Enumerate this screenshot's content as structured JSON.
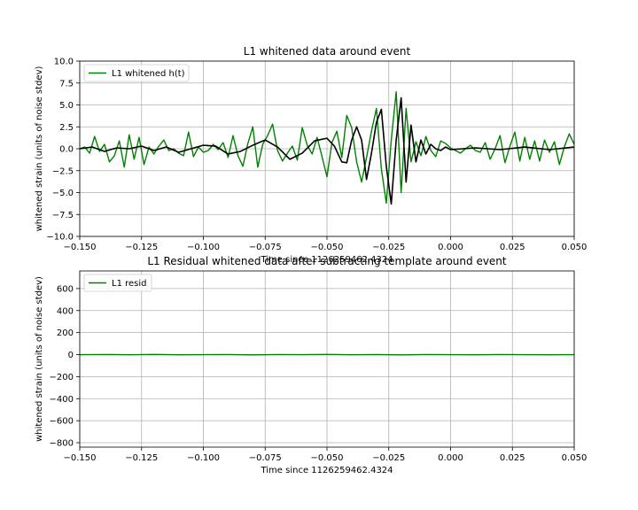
{
  "chart_data": [
    {
      "type": "line",
      "title": "L1 whitened data around event",
      "xlabel": "Time since 1126259462.4324",
      "ylabel": "whitened strain (units of noise stdev)",
      "xlim": [
        -0.15,
        0.05
      ],
      "ylim": [
        -10,
        10
      ],
      "xticks": [
        -0.15,
        -0.125,
        -0.1,
        -0.075,
        -0.05,
        -0.025,
        0.0,
        0.025,
        0.05
      ],
      "xtick_labels": [
        "−0.150",
        "−0.125",
        "−0.100",
        "−0.075",
        "−0.050",
        "−0.025",
        "0.000",
        "0.025",
        "0.050"
      ],
      "yticks": [
        -10,
        -7.5,
        -5,
        -2.5,
        0,
        2.5,
        5,
        7.5,
        10
      ],
      "ytick_labels": [
        "−10.0",
        "−7.5",
        "−5.0",
        "−2.5",
        "0.0",
        "2.5",
        "5.0",
        "7.5",
        "10.0"
      ],
      "grid": true,
      "legend_position": "top-left",
      "series": [
        {
          "name": "L1 whitened h(t)",
          "color": "#008000",
          "x": [
            -0.15,
            -0.148,
            -0.146,
            -0.144,
            -0.142,
            -0.14,
            -0.138,
            -0.136,
            -0.134,
            -0.132,
            -0.13,
            -0.128,
            -0.126,
            -0.124,
            -0.122,
            -0.12,
            -0.118,
            -0.116,
            -0.114,
            -0.112,
            -0.11,
            -0.108,
            -0.106,
            -0.104,
            -0.102,
            -0.1,
            -0.098,
            -0.096,
            -0.094,
            -0.092,
            -0.09,
            -0.088,
            -0.086,
            -0.084,
            -0.082,
            -0.08,
            -0.078,
            -0.076,
            -0.074,
            -0.072,
            -0.07,
            -0.068,
            -0.066,
            -0.064,
            -0.062,
            -0.06,
            -0.058,
            -0.056,
            -0.054,
            -0.052,
            -0.05,
            -0.048,
            -0.046,
            -0.044,
            -0.042,
            -0.04,
            -0.038,
            -0.036,
            -0.034,
            -0.032,
            -0.03,
            -0.028,
            -0.026,
            -0.024,
            -0.022,
            -0.02,
            -0.018,
            -0.016,
            -0.014,
            -0.012,
            -0.01,
            -0.008,
            -0.006,
            -0.004,
            -0.002,
            0.0,
            0.002,
            0.004,
            0.006,
            0.008,
            0.01,
            0.012,
            0.014,
            0.016,
            0.018,
            0.02,
            0.022,
            0.024,
            0.026,
            0.028,
            0.03,
            0.032,
            0.034,
            0.036,
            0.038,
            0.04,
            0.042,
            0.044,
            0.046,
            0.048,
            0.05
          ],
          "y": [
            0.0,
            0.2,
            -0.5,
            1.4,
            -0.3,
            0.5,
            -1.5,
            -0.8,
            0.9,
            -2.1,
            1.6,
            -1.2,
            1.3,
            -1.8,
            0.2,
            -0.6,
            0.3,
            1.0,
            -0.2,
            0.0,
            -0.5,
            -0.8,
            1.9,
            -0.9,
            0.2,
            -0.4,
            -0.2,
            0.5,
            -0.1,
            0.7,
            -1.0,
            1.5,
            -0.8,
            -2.0,
            0.6,
            2.5,
            -2.1,
            0.5,
            1.5,
            2.8,
            -0.2,
            -1.4,
            -0.5,
            0.3,
            -1.3,
            2.4,
            0.4,
            -0.6,
            1.3,
            -0.9,
            -3.2,
            0.7,
            2.0,
            -1.0,
            3.8,
            2.4,
            -1.5,
            -3.8,
            -1.0,
            2.0,
            4.6,
            -2.3,
            -6.2,
            1.0,
            6.5,
            -5.0,
            4.6,
            -1.5,
            0.8,
            -0.8,
            1.4,
            -0.2,
            -0.9,
            0.9,
            0.6,
            0.1,
            -0.2,
            -0.5,
            0.0,
            0.4,
            -0.2,
            -0.4,
            0.7,
            -1.2,
            0.0,
            1.5,
            -1.6,
            0.3,
            1.9,
            -1.4,
            1.3,
            -1.2,
            0.9,
            -1.4,
            1.0,
            -0.4,
            0.8,
            -1.8,
            0.2,
            1.7,
            0.5
          ]
        },
        {
          "name": "",
          "color": "#000000",
          "x": [
            -0.15,
            -0.145,
            -0.14,
            -0.135,
            -0.13,
            -0.125,
            -0.12,
            -0.115,
            -0.11,
            -0.105,
            -0.1,
            -0.095,
            -0.09,
            -0.085,
            -0.08,
            -0.075,
            -0.07,
            -0.065,
            -0.06,
            -0.055,
            -0.05,
            -0.047,
            -0.044,
            -0.042,
            -0.04,
            -0.038,
            -0.036,
            -0.034,
            -0.032,
            -0.03,
            -0.028,
            -0.026,
            -0.024,
            -0.022,
            -0.02,
            -0.018,
            -0.016,
            -0.014,
            -0.012,
            -0.01,
            -0.008,
            -0.006,
            -0.004,
            -0.002,
            0.0,
            0.01,
            0.02,
            0.03,
            0.04,
            0.05
          ],
          "y": [
            0.0,
            0.2,
            -0.3,
            0.1,
            0.0,
            0.3,
            -0.2,
            0.2,
            -0.4,
            0.0,
            0.4,
            0.3,
            -0.6,
            -0.3,
            0.4,
            1.0,
            0.2,
            -1.2,
            -0.5,
            0.9,
            1.2,
            0.3,
            -1.5,
            -1.6,
            1.0,
            2.5,
            1.0,
            -3.5,
            -0.5,
            3.0,
            4.5,
            -2.0,
            -6.3,
            1.0,
            5.8,
            -3.8,
            2.7,
            -1.5,
            1.0,
            -0.6,
            0.5,
            0.0,
            -0.2,
            0.2,
            -0.1,
            0.1,
            -0.1,
            0.2,
            -0.1,
            0.2
          ]
        }
      ]
    },
    {
      "type": "line",
      "title": "L1 Residual whitened data after subtracting template around event",
      "xlabel": "Time since 1126259462.4324",
      "ylabel": "whitened strain (units of noise stdev)",
      "xlim": [
        -0.15,
        0.05
      ],
      "ylim": [
        -840,
        760
      ],
      "xticks": [
        -0.15,
        -0.125,
        -0.1,
        -0.075,
        -0.05,
        -0.025,
        0.0,
        0.025,
        0.05
      ],
      "xtick_labels": [
        "−0.150",
        "−0.125",
        "−0.100",
        "−0.075",
        "−0.050",
        "−0.025",
        "0.000",
        "0.025",
        "0.050"
      ],
      "yticks": [
        -800,
        -600,
        -400,
        -200,
        0,
        200,
        400,
        600
      ],
      "ytick_labels": [
        "−800",
        "−600",
        "−400",
        "−200",
        "0",
        "200",
        "400",
        "600"
      ],
      "grid": true,
      "legend_position": "top-left",
      "series": [
        {
          "name": "L1 resid",
          "color": "#008000",
          "x": [
            -0.15,
            -0.14,
            -0.13,
            -0.12,
            -0.11,
            -0.1,
            -0.09,
            -0.08,
            -0.07,
            -0.06,
            -0.05,
            -0.04,
            -0.03,
            -0.02,
            -0.01,
            0.0,
            0.01,
            0.02,
            0.03,
            0.04,
            0.05
          ],
          "y": [
            0,
            1,
            -1,
            2,
            -1,
            0,
            1,
            -2,
            1,
            0,
            2,
            -1,
            1,
            -2,
            1,
            0,
            -1,
            1,
            0,
            -1,
            0
          ]
        }
      ]
    }
  ]
}
